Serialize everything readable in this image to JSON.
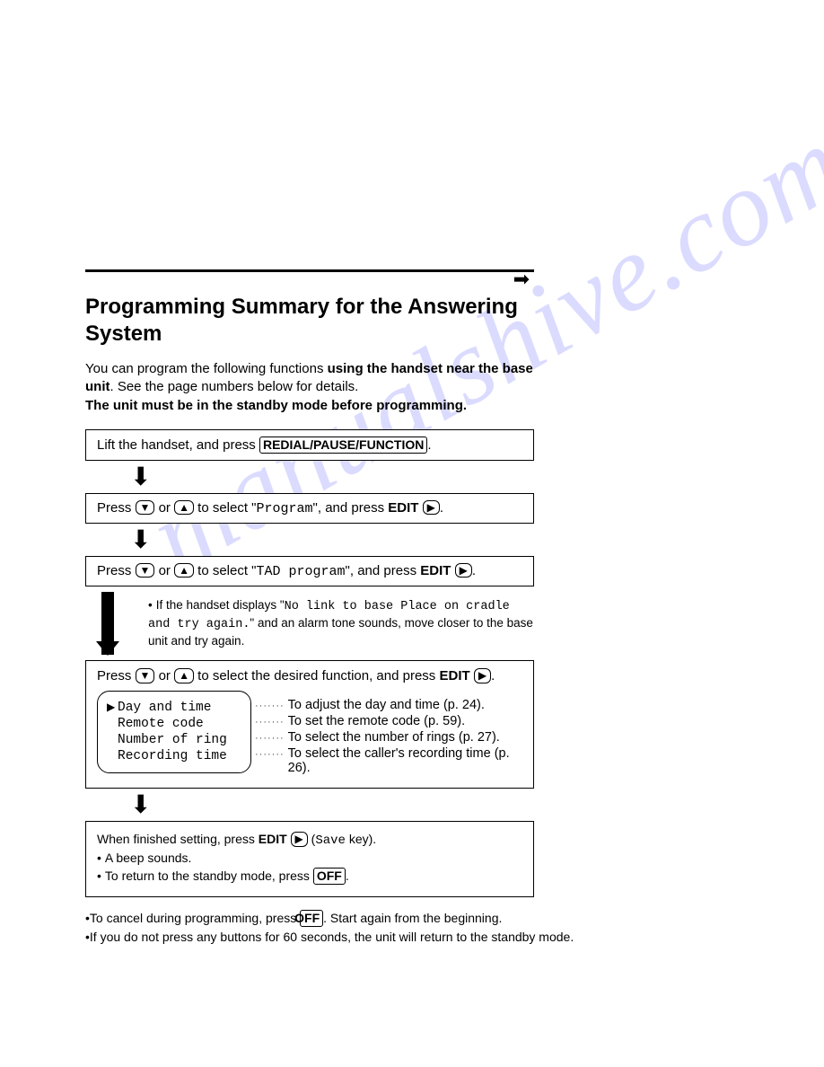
{
  "watermark": "manualshive.com",
  "title": "Programming Summary for the Answering System",
  "intro": {
    "pre": "You can program the following functions ",
    "bold1": "using the handset near the base unit",
    "mid": ". See the page numbers below for details.",
    "bold2": "The unit must be in the standby mode before programming."
  },
  "step1": {
    "pre": "Lift the handset, and press ",
    "button": "REDIAL/PAUSE/FUNCTION",
    "post": "."
  },
  "step2": {
    "pre": "Press ",
    "or": " or ",
    "mid": " to select \"",
    "mono": "Program",
    "post": "\", and press ",
    "edit": "EDIT",
    "tail": "."
  },
  "step3": {
    "pre": "Press ",
    "or": " or ",
    "mid": " to select \"",
    "mono": "TAD program",
    "post": "\", and press ",
    "edit": "EDIT",
    "tail": "."
  },
  "note": {
    "pre": "If the handset displays \"",
    "mono": "No link to base Place on cradle and try again.",
    "post": "\" and an alarm tone sounds, move closer to the base unit and try again."
  },
  "step4": {
    "pre": "Press ",
    "or": " or ",
    "mid": " to select the desired function, and press ",
    "edit": "EDIT",
    "tail": "."
  },
  "functions": [
    {
      "pointer": true,
      "label": "Day and time",
      "desc": "To adjust the day and time (p. 24)."
    },
    {
      "pointer": false,
      "label": "Remote code",
      "desc": "To set the remote code (p. 59)."
    },
    {
      "pointer": false,
      "label": "Number of ring",
      "desc": "To select the number of rings (p. 27)."
    },
    {
      "pointer": false,
      "label": "Recording time",
      "desc": "To select the caller's recording time (p. 26)."
    }
  ],
  "final": {
    "line1_pre": "When finished setting, press ",
    "line1_edit": "EDIT",
    "line1_mid": " (",
    "line1_mono": "Save",
    "line1_post": " key).",
    "bullet1": "A beep sounds.",
    "bullet2_pre": "To return to the standby mode, press ",
    "bullet2_btn": "OFF",
    "bullet2_post": "."
  },
  "foot1": {
    "pre": "To cancel during programming, press ",
    "btn": "OFF",
    "post": ". Start again from the beginning."
  },
  "foot2": "If you do not press any buttons for 60 seconds, the unit will return to the standby mode."
}
